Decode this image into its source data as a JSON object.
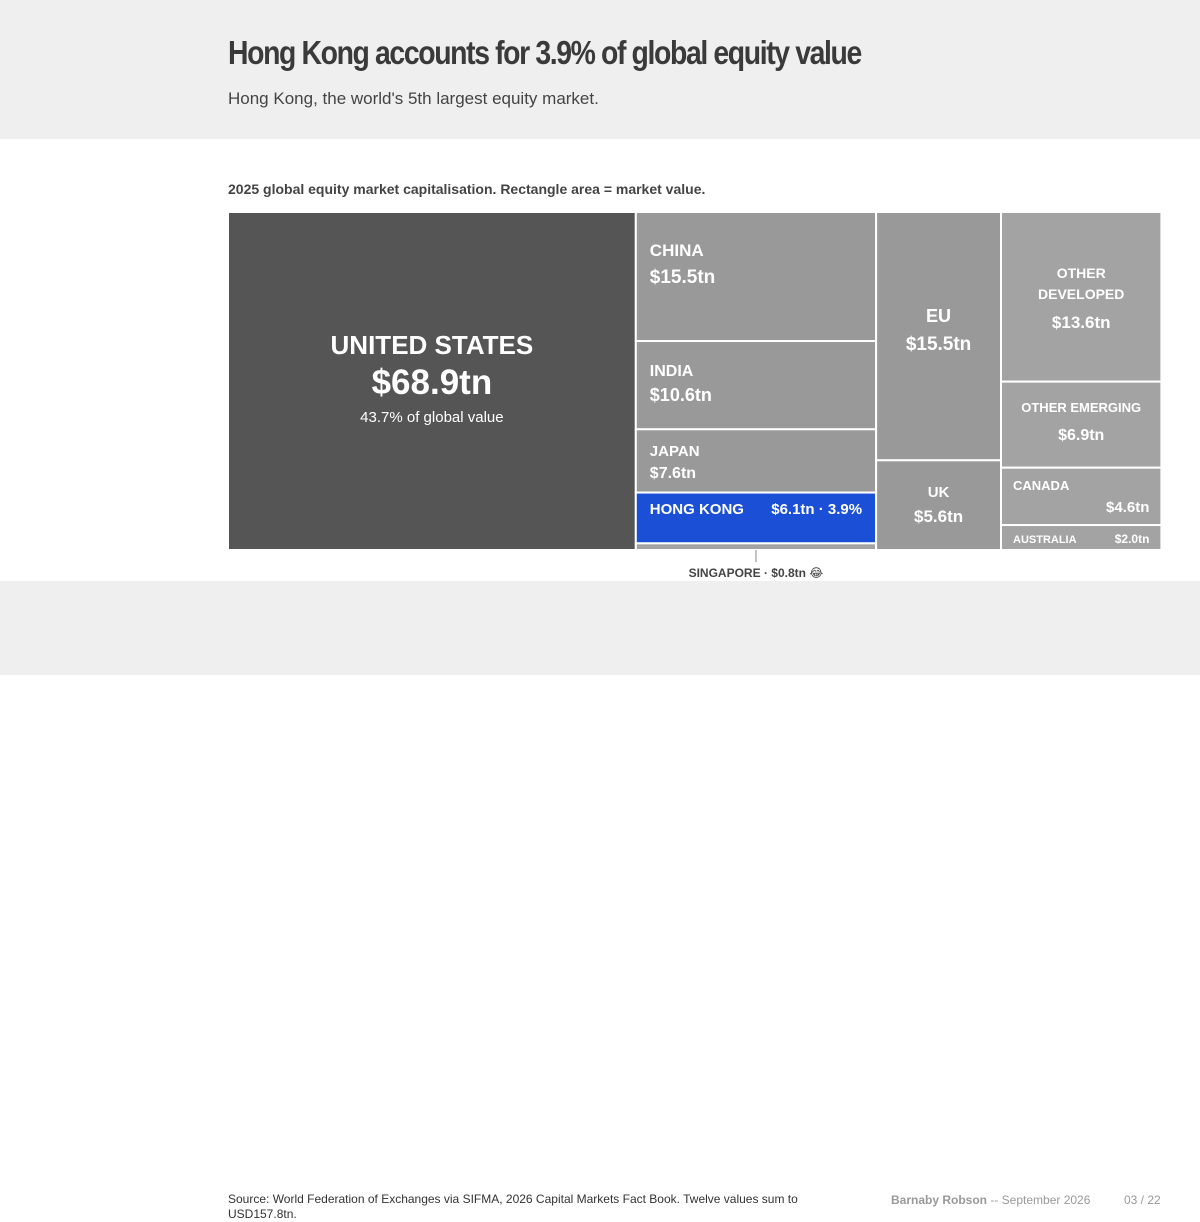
{
  "header": {
    "title": "Hong Kong accounts for 3.9% of global equity value",
    "subtitle": "Hong Kong, the world's 5th largest equity market."
  },
  "chart_data": {
    "type": "treemap",
    "title": "2025 global equity market capitalisation. Rectangle area = market value.",
    "unit": "USD trillion",
    "total": 157.8,
    "highlight_color": "#1a4fd6",
    "series": [
      {
        "id": "us",
        "label": "UNITED STATES",
        "value": 68.9,
        "value_label": "$68.9tn",
        "note": "43.7% of global value",
        "color": "#555555"
      },
      {
        "id": "china",
        "label": "CHINA",
        "value": 15.5,
        "value_label": "$15.5tn",
        "color": "#999999"
      },
      {
        "id": "eu",
        "label": "EU",
        "value": 15.5,
        "value_label": "$15.5tn",
        "color": "#999999"
      },
      {
        "id": "other-developed",
        "label": "OTHER DEVELOPED",
        "value": 13.6,
        "value_label": "$13.6tn",
        "color": "#a3a3a3"
      },
      {
        "id": "india",
        "label": "INDIA",
        "value": 10.6,
        "value_label": "$10.6tn",
        "color": "#999999"
      },
      {
        "id": "japan",
        "label": "JAPAN",
        "value": 7.6,
        "value_label": "$7.6tn",
        "color": "#999999"
      },
      {
        "id": "other-emerging",
        "label": "OTHER EMERGING",
        "value": 6.9,
        "value_label": "$6.9tn",
        "color": "#a3a3a3"
      },
      {
        "id": "hong-kong",
        "label": "HONG KONG",
        "value": 6.1,
        "value_label": "$6.1tn · 3.9%",
        "color": "#1a4fd6"
      },
      {
        "id": "uk",
        "label": "UK",
        "value": 5.6,
        "value_label": "$5.6tn",
        "color": "#999999"
      },
      {
        "id": "canada",
        "label": "CANADA",
        "value": 4.6,
        "value_label": "$4.6tn",
        "color": "#a3a3a3"
      },
      {
        "id": "australia",
        "label": "AUSTRALIA",
        "value": 2.0,
        "value_label": "$2.0tn",
        "color": "#a3a3a3"
      },
      {
        "id": "singapore",
        "label": "SINGAPORE",
        "value": 0.8,
        "value_label": "$0.8tn",
        "callout": "SINGAPORE · $0.8tn 😂",
        "color": "#a3a3a3"
      }
    ]
  },
  "footer": {
    "source": "Source: World Federation of Exchanges via SIFMA, 2026 Capital Markets Fact Book. Twelve values sum to USD157.8tn.",
    "author": "Barnaby Robson",
    "date": " -- September 2026",
    "page": "03 / 22"
  }
}
